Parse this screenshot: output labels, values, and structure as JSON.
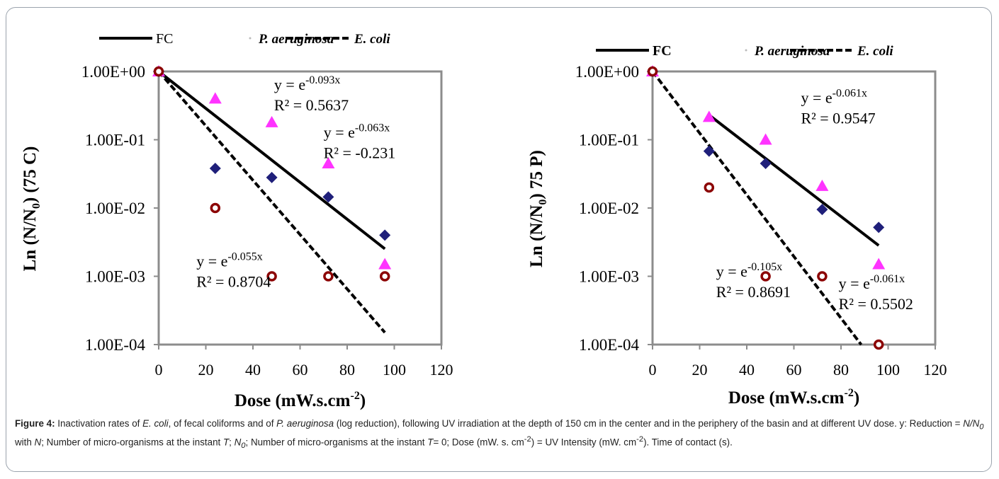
{
  "chart_data": [
    {
      "type": "scatter",
      "title": "",
      "xlabel": "Dose (mW.s.cm",
      "xlabel_sup": "-2",
      "xlabel_end": ")",
      "ylabel": "Ln (N/N",
      "ylabel_sub": "0",
      "ylabel_end": ") (75 C)",
      "xlim": [
        0,
        120
      ],
      "ylim": [
        0.0001,
        1
      ],
      "y_scale": "log",
      "x_ticks": [
        "0",
        "20",
        "40",
        "60",
        "80",
        "100",
        "120"
      ],
      "y_ticks": [
        "1.00E+00",
        "1.00E-01",
        "1.00E-02",
        "1.00E-03",
        "1.00E-04"
      ],
      "legend": [
        "FC",
        "P. aeruginosa",
        "E. coli"
      ],
      "legend_placement": "top",
      "series": [
        {
          "name": "FC",
          "marker": "diamond",
          "color": "#1f1f7a",
          "x": [
            0,
            24,
            48,
            72,
            96
          ],
          "y": [
            1,
            0.038,
            0.028,
            0.0145,
            0.004
          ]
        },
        {
          "name": "P. aeruginosa",
          "marker": "triangle",
          "color": "#ff33ff",
          "x": [
            0,
            24,
            48,
            72,
            96
          ],
          "y": [
            1,
            0.4,
            0.18,
            0.045,
            0.0015
          ]
        },
        {
          "name": "E. coli",
          "marker": "circle-open",
          "color": "#8b0000",
          "x": [
            0,
            24,
            48,
            72,
            96
          ],
          "y": [
            1,
            0.01,
            0.001,
            0.001,
            0.001
          ]
        }
      ],
      "trendlines": [
        {
          "series": "FC",
          "style": "solid",
          "k": 0.0623,
          "x_end": 96
        },
        {
          "series": "E. coli",
          "style": "dashed",
          "k": 0.0917,
          "x_end": 96
        }
      ],
      "annotations": [
        {
          "base": "y = e",
          "exp": "-0.093x",
          "r2": "R² = 0.5637",
          "x": 49,
          "y": 0.54
        },
        {
          "base": "y = e",
          "exp": "-0.063x",
          "r2": "R² = -0.231",
          "x": 70,
          "y": 0.108
        },
        {
          "base": "y = e",
          "exp": "-0.055x",
          "r2": "R² = 0.8704",
          "x": 16,
          "y": 0.0014
        }
      ]
    },
    {
      "type": "scatter",
      "title": "",
      "xlabel": "Dose (mW.s.cm",
      "xlabel_sup": "-2",
      "xlabel_end": ")",
      "ylabel": "Ln (N/N",
      "ylabel_sub": "0",
      "ylabel_end": ") 75 P)",
      "xlim": [
        0,
        120
      ],
      "ylim": [
        0.0001,
        1
      ],
      "y_scale": "log",
      "x_ticks": [
        "0",
        "20",
        "40",
        "60",
        "80",
        "100",
        "120"
      ],
      "y_ticks": [
        "1.00E+00",
        "1.00E-01",
        "1.00E-02",
        "1.00E-03",
        "1.00E-04"
      ],
      "legend": [
        "FC",
        "P. aeruginosa",
        "E. coli"
      ],
      "legend_placement": "top",
      "series": [
        {
          "name": "FC",
          "marker": "diamond",
          "color": "#1f1f7a",
          "x": [
            0,
            24,
            48,
            72,
            96
          ],
          "y": [
            1,
            0.068,
            0.045,
            0.0095,
            0.0052
          ]
        },
        {
          "name": "P. aeruginosa",
          "marker": "triangle",
          "color": "#ff33ff",
          "x": [
            0,
            24,
            48,
            72,
            96
          ],
          "y": [
            1,
            0.215,
            0.1,
            0.021,
            0.0015
          ]
        },
        {
          "name": "E. coli",
          "marker": "circle-open",
          "color": "#8b0000",
          "x": [
            0,
            24,
            48,
            72,
            96
          ],
          "y": [
            1,
            0.02,
            0.001,
            0.001,
            0.0001
          ]
        }
      ],
      "trendlines": [
        {
          "series": "FC",
          "style": "solid",
          "x_start": 24,
          "y_start": 0.23,
          "k": 0.0611,
          "x_end": 96
        },
        {
          "series": "E. coli",
          "style": "dashed",
          "k": 0.104,
          "x_end": 88.6
        }
      ],
      "annotations": [
        {
          "base": "y = e",
          "exp": "-0.061x",
          "r2": "R² = 0.9547",
          "x": 63,
          "y": 0.345
        },
        {
          "base": "y = e",
          "exp": "-0.105x",
          "r2": "R² = 0.8691",
          "x": 27,
          "y": 0.00099
        },
        {
          "base": "y = e",
          "exp": "-0.061x",
          "r2": "R² = 0.5502",
          "x": 79,
          "y": 0.00066
        }
      ]
    }
  ],
  "caption": {
    "label": "Figure 4:",
    "t1": " Inactivation rates of ",
    "i1": "E. coli",
    "t2": ", of fecal coliforms and of ",
    "i2": "P. aeruginosa",
    "t3": " (log reduction), following UV irradiation at the depth of 150 cm  in the center  and in the periphery of the basin and at different UV dose. y: Reduction = ",
    "i3": "N/N",
    "i3sub": "0",
    "t4": " with ",
    "i4": "N",
    "t5": "; Number of micro-organisms at the instant ",
    "i5": "T",
    "t6": "; ",
    "i6": "N",
    "i6sub": "0",
    "t7": "; Number of micro-organisms at the instant ",
    "i7": "T",
    "t8": "= 0; Dose (mW. s. cm",
    "sup1": "-2",
    "t9": ") = UV Intensity (mW. cm",
    "sup2": "-2",
    "t10": "). Time of contact (s)."
  }
}
